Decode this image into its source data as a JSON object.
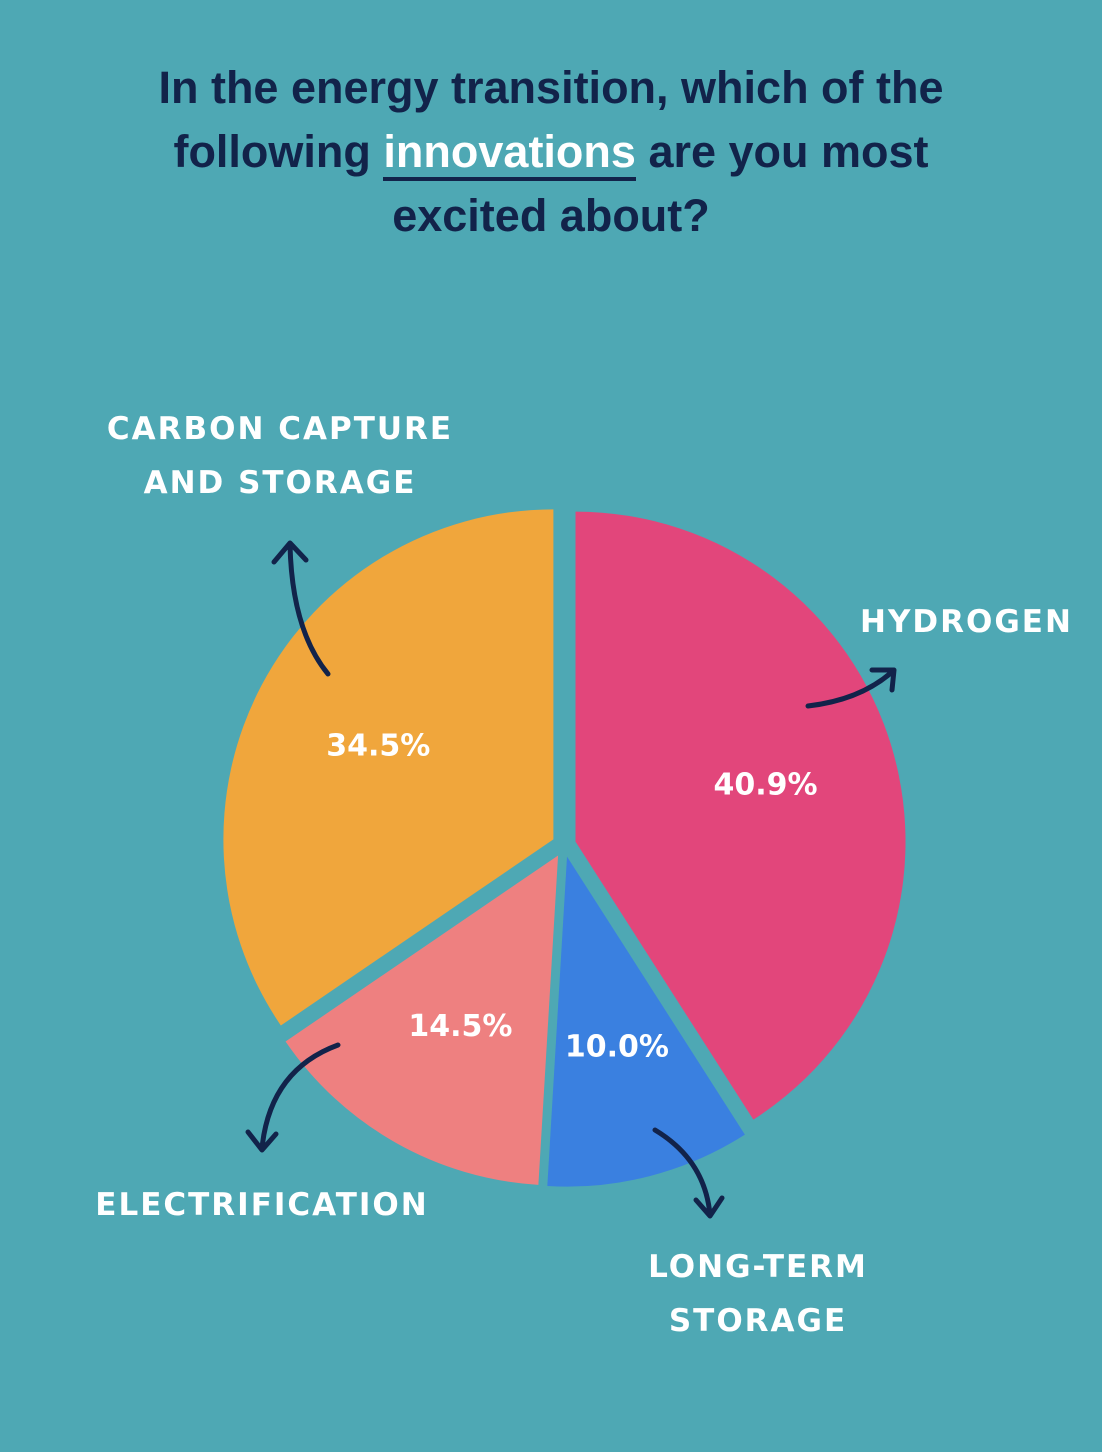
{
  "chart_data": {
    "type": "pie",
    "title": [
      "In the energy transition, which of the following",
      "innovations",
      "are you most excited about?"
    ],
    "categories": [
      "HYDROGEN",
      "LONG-TERM STORAGE",
      "ELECTRIFICATION",
      "CARBON CAPTURE AND STORAGE"
    ],
    "values": [
      40.9,
      10.0,
      14.5,
      34.5
    ],
    "value_labels": [
      "40.9%",
      "10.0%",
      "14.5%",
      "34.5%"
    ],
    "colors": [
      "#e2467b",
      "#3a80e0",
      "#ee8080",
      "#f0a63c"
    ]
  }
}
